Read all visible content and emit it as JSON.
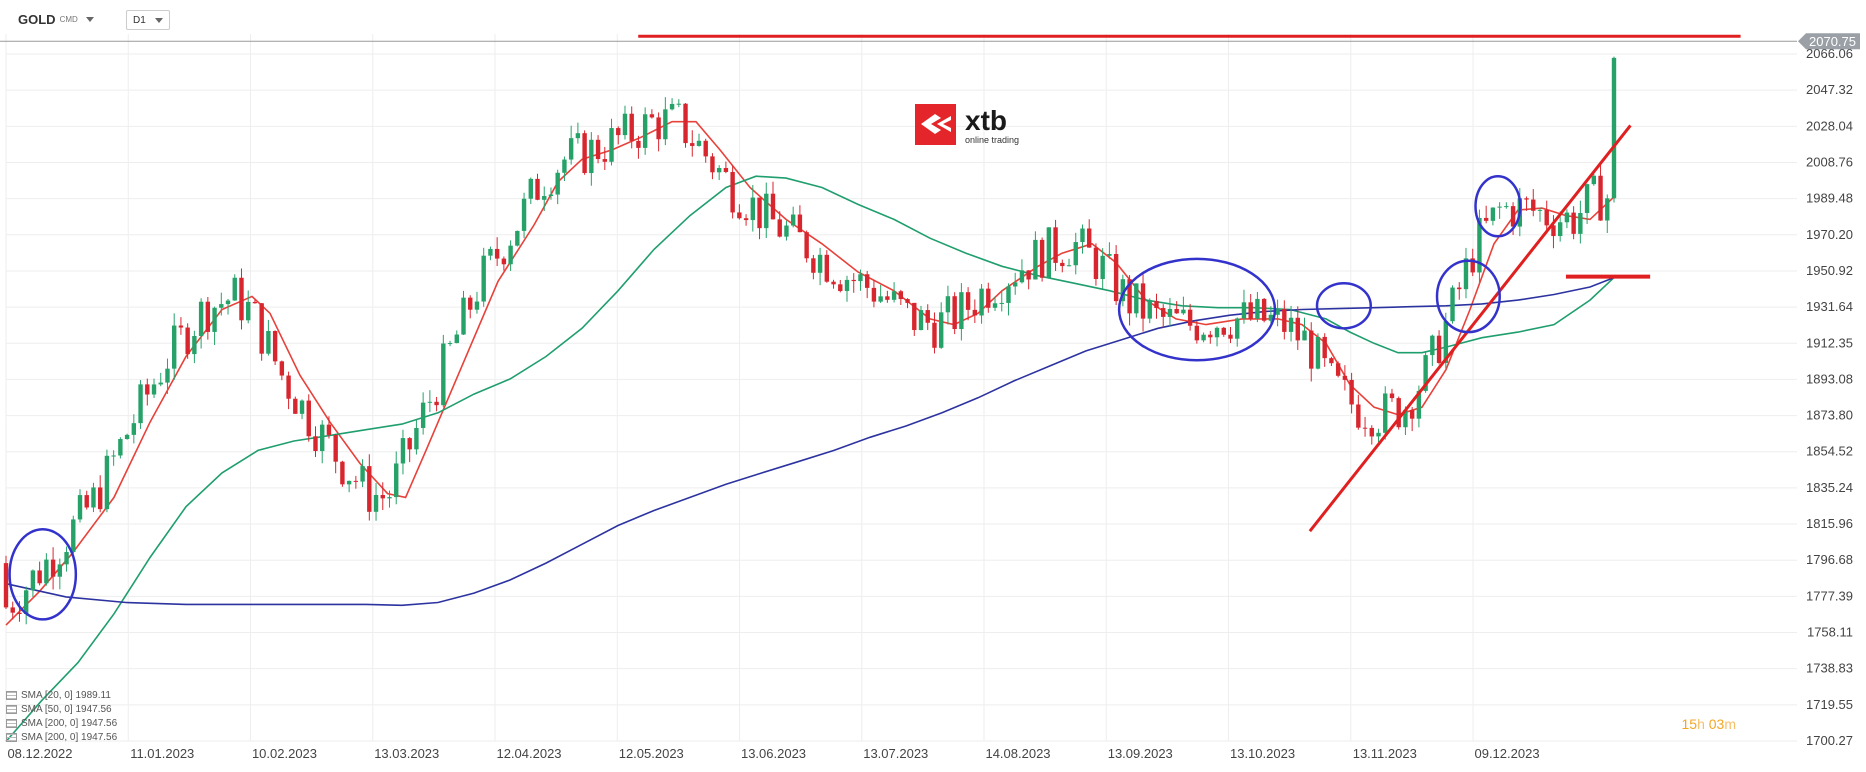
{
  "header": {
    "symbol": "GOLD",
    "symbol_type": "CMD",
    "timeframe": "D1"
  },
  "logo": {
    "brand": "xtb",
    "tagline": "online trading"
  },
  "indicators": [
    {
      "label": "SMA [20, 0] 1989.11",
      "color": "#e8413a"
    },
    {
      "label": "SMA [50, 0] 1947.56",
      "color": "#1f9e6e"
    },
    {
      "label": "SMA [200, 0] 1947.56",
      "color": "#2c33a0"
    },
    {
      "label": "SMA [200, 0] 1947.56",
      "color": "#2c33a0"
    }
  ],
  "countdown": {
    "h": "15",
    "h_unit": "h",
    "m": "03",
    "m_unit": "m"
  },
  "chart_data": {
    "type": "candlestick",
    "instrument": "GOLD",
    "timeframe": "D1",
    "last_price": "2070.75",
    "ylim": [
      1700.27,
      2066.06
    ],
    "y_ticks": [
      "2066.06",
      "2047.32",
      "2028.04",
      "2008.76",
      "1989.48",
      "1970.20",
      "1950.92",
      "1931.64",
      "1912.35",
      "1893.08",
      "1873.80",
      "1854.52",
      "1835.24",
      "1815.96",
      "1796.68",
      "1777.39",
      "1758.11",
      "1738.83",
      "1719.55",
      "1700.27"
    ],
    "x_ticks": [
      "08.12.2022",
      "11.01.2023",
      "10.02.2023",
      "13.03.2023",
      "12.04.2023",
      "12.05.2023",
      "13.06.2023",
      "13.07.2023",
      "14.08.2023",
      "13.09.2023",
      "13.10.2023",
      "13.11.2023",
      "09.12.2023"
    ],
    "colors": {
      "up": "#26a269",
      "down": "#d8262f",
      "sma20": "#e8413a",
      "sma50": "#1f9e6e",
      "sma200": "#2c33a0",
      "annotation": "#e02020",
      "circle": "#3333cc"
    },
    "series": [
      {
        "name": "SMA [20, 0]",
        "points": [
          [
            0,
            1762
          ],
          [
            28,
            1780
          ],
          [
            55,
            1800
          ],
          [
            90,
            1830
          ],
          [
            120,
            1870
          ],
          [
            150,
            1905
          ],
          [
            180,
            1930
          ],
          [
            205,
            1937
          ],
          [
            220,
            1928
          ],
          [
            245,
            1895
          ],
          [
            270,
            1870
          ],
          [
            295,
            1848
          ],
          [
            318,
            1832
          ],
          [
            333,
            1830
          ],
          [
            350,
            1855
          ],
          [
            380,
            1900
          ],
          [
            410,
            1945
          ],
          [
            440,
            1975
          ],
          [
            460,
            1998
          ],
          [
            480,
            2010
          ],
          [
            505,
            2015
          ],
          [
            530,
            2022
          ],
          [
            555,
            2030
          ],
          [
            575,
            2030
          ],
          [
            595,
            2015
          ],
          [
            620,
            1995
          ],
          [
            650,
            1978
          ],
          [
            680,
            1965
          ],
          [
            710,
            1950
          ],
          [
            740,
            1940
          ],
          [
            770,
            1925
          ],
          [
            790,
            1922
          ],
          [
            810,
            1928
          ],
          [
            830,
            1940
          ],
          [
            860,
            1953
          ],
          [
            880,
            1960
          ],
          [
            905,
            1965
          ],
          [
            925,
            1955
          ],
          [
            950,
            1935
          ],
          [
            975,
            1925
          ],
          [
            1000,
            1922
          ],
          [
            1030,
            1925
          ],
          [
            1060,
            1925
          ],
          [
            1080,
            1922
          ],
          [
            1100,
            1912
          ],
          [
            1120,
            1890
          ],
          [
            1140,
            1878
          ],
          [
            1160,
            1874
          ],
          [
            1180,
            1878
          ],
          [
            1200,
            1898
          ],
          [
            1220,
            1930
          ],
          [
            1240,
            1965
          ],
          [
            1260,
            1983
          ],
          [
            1280,
            1984
          ],
          [
            1300,
            1980
          ],
          [
            1320,
            1978
          ],
          [
            1340,
            1990
          ]
        ]
      },
      {
        "name": "SMA [50, 0]",
        "points": [
          [
            0,
            1700
          ],
          [
            30,
            1722
          ],
          [
            60,
            1742
          ],
          [
            90,
            1768
          ],
          [
            120,
            1798
          ],
          [
            150,
            1825
          ],
          [
            180,
            1843
          ],
          [
            210,
            1855
          ],
          [
            240,
            1860
          ],
          [
            270,
            1863
          ],
          [
            300,
            1866
          ],
          [
            330,
            1869
          ],
          [
            360,
            1875
          ],
          [
            390,
            1885
          ],
          [
            420,
            1893
          ],
          [
            450,
            1905
          ],
          [
            480,
            1920
          ],
          [
            510,
            1940
          ],
          [
            540,
            1962
          ],
          [
            570,
            1980
          ],
          [
            600,
            1995
          ],
          [
            625,
            2001
          ],
          [
            650,
            2000
          ],
          [
            680,
            1995
          ],
          [
            710,
            1986
          ],
          [
            740,
            1978
          ],
          [
            770,
            1968
          ],
          [
            800,
            1960
          ],
          [
            830,
            1953
          ],
          [
            860,
            1948
          ],
          [
            890,
            1944
          ],
          [
            920,
            1940
          ],
          [
            950,
            1935
          ],
          [
            980,
            1932
          ],
          [
            1010,
            1931
          ],
          [
            1040,
            1931
          ],
          [
            1070,
            1930
          ],
          [
            1100,
            1925
          ],
          [
            1120,
            1918
          ],
          [
            1140,
            1912
          ],
          [
            1160,
            1907
          ],
          [
            1180,
            1907
          ],
          [
            1200,
            1910
          ],
          [
            1230,
            1915
          ],
          [
            1260,
            1918
          ],
          [
            1290,
            1922
          ],
          [
            1320,
            1935
          ],
          [
            1340,
            1947
          ]
        ]
      },
      {
        "name": "SMA [200, 0]",
        "points": [
          [
            0,
            1784
          ],
          [
            50,
            1777
          ],
          [
            100,
            1774
          ],
          [
            150,
            1773
          ],
          [
            200,
            1773
          ],
          [
            250,
            1773
          ],
          [
            300,
            1773
          ],
          [
            330,
            1772.5
          ],
          [
            360,
            1774
          ],
          [
            390,
            1779
          ],
          [
            420,
            1786
          ],
          [
            450,
            1795
          ],
          [
            480,
            1805
          ],
          [
            510,
            1815
          ],
          [
            540,
            1823
          ],
          [
            570,
            1830
          ],
          [
            600,
            1837
          ],
          [
            630,
            1843
          ],
          [
            660,
            1849
          ],
          [
            690,
            1855
          ],
          [
            720,
            1862
          ],
          [
            750,
            1868
          ],
          [
            780,
            1875
          ],
          [
            810,
            1883
          ],
          [
            840,
            1892
          ],
          [
            870,
            1900
          ],
          [
            900,
            1908
          ],
          [
            930,
            1914
          ],
          [
            960,
            1920
          ],
          [
            990,
            1924
          ],
          [
            1020,
            1927
          ],
          [
            1050,
            1929
          ],
          [
            1080,
            1930
          ],
          [
            1110,
            1930.5
          ],
          [
            1140,
            1931
          ],
          [
            1170,
            1931.5
          ],
          [
            1200,
            1932
          ],
          [
            1230,
            1933
          ],
          [
            1260,
            1935
          ],
          [
            1290,
            1938
          ],
          [
            1320,
            1942
          ],
          [
            1340,
            1947
          ]
        ]
      }
    ],
    "annotations": {
      "resistance_line": [
        [
          0.353,
          2075.5
        ],
        [
          0.9685,
          2075.5
        ]
      ],
      "support_line": [
        [
          0.728,
          1812
        ],
        [
          0.907,
          2028
        ]
      ],
      "level_mark": [
        [
          0.871,
          1947.5
        ],
        [
          0.918,
          1947.5
        ]
      ],
      "circles": [
        [
          0.0205,
          1789,
          0.0185,
          24
        ],
        [
          0.665,
          1930,
          0.0435,
          27
        ],
        [
          0.747,
          1932,
          0.015,
          12
        ],
        [
          0.8165,
          1937,
          0.0175,
          19
        ],
        [
          0.833,
          1985,
          0.0125,
          16
        ]
      ]
    }
  }
}
